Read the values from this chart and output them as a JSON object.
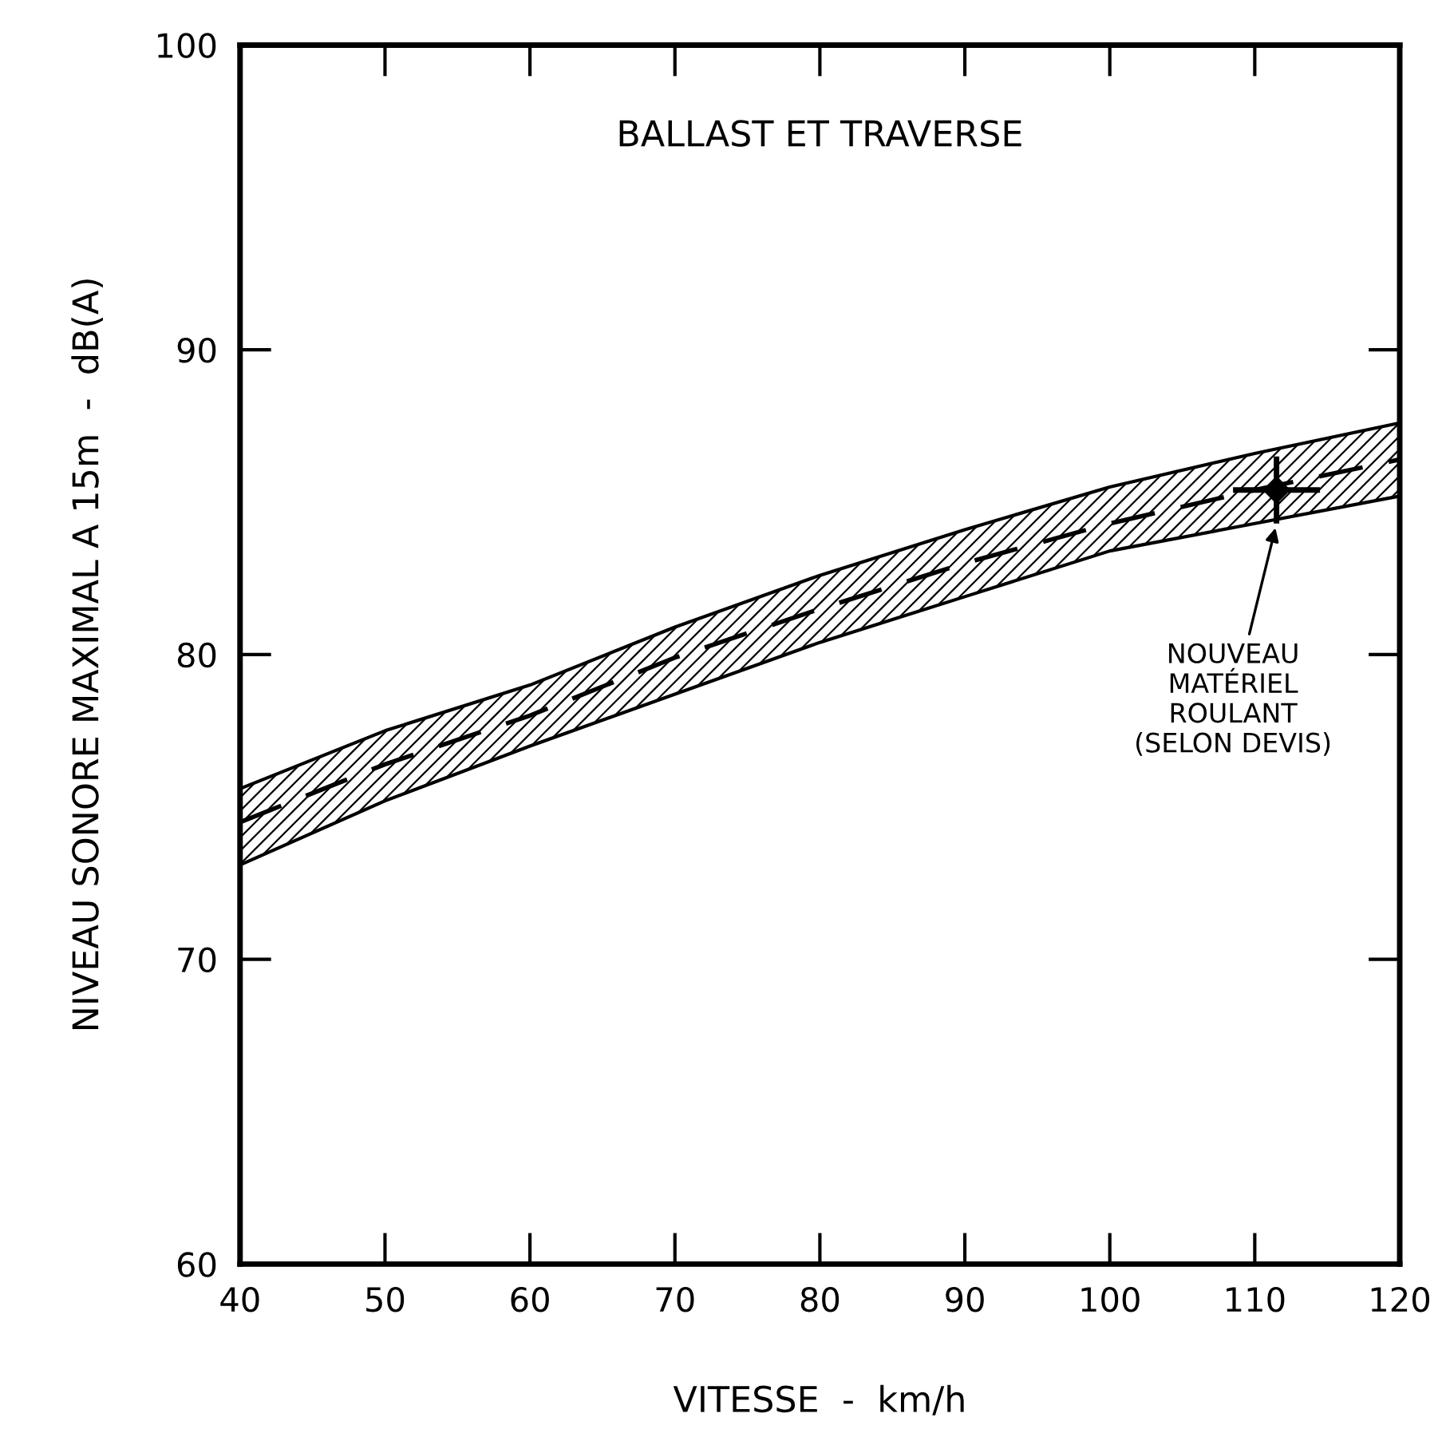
{
  "chart_data": {
    "type": "line",
    "title": "BALLAST ET TRAVERSE",
    "xlabel": "VITESSE  -  km/h",
    "ylabel": "NIVEAU SONORE MAXIMAL A 15m  -  dB(A)",
    "xlim": [
      40,
      120
    ],
    "ylim": [
      60,
      100
    ],
    "xticks": [
      40,
      50,
      60,
      70,
      80,
      90,
      100,
      110,
      120
    ],
    "yticks": [
      60,
      70,
      80,
      90,
      100
    ],
    "grid": false,
    "legend": false,
    "series": [
      {
        "color": "#000000",
        "line_style": "dashed",
        "marker": "none",
        "x": [
          40,
          50,
          60,
          70,
          80,
          90,
          100,
          110,
          120
        ],
        "values": [
          74.5,
          76.4,
          78.0,
          79.9,
          81.5,
          83.0,
          84.3,
          85.4,
          86.4
        ],
        "lower": [
          73.1,
          75.2,
          77.0,
          78.7,
          80.4,
          81.9,
          83.4,
          84.3,
          85.2
        ],
        "upper": [
          75.6,
          77.5,
          79.0,
          80.9,
          82.6,
          84.1,
          85.5,
          86.6,
          87.6
        ]
      },
      {
        "type": "scatter",
        "color": "#000000",
        "marker": "diamond",
        "x": [
          111.5
        ],
        "values": [
          85.4
        ],
        "errors": [
          1.1
        ],
        "xerrors": [
          3
        ]
      }
    ],
    "annotations": [
      {
        "text": "NOUVEAU\nMATÉRIEL\nROULANT\n(SELON DEVIS)",
        "x": 111.5,
        "y": 84.3
      }
    ]
  }
}
